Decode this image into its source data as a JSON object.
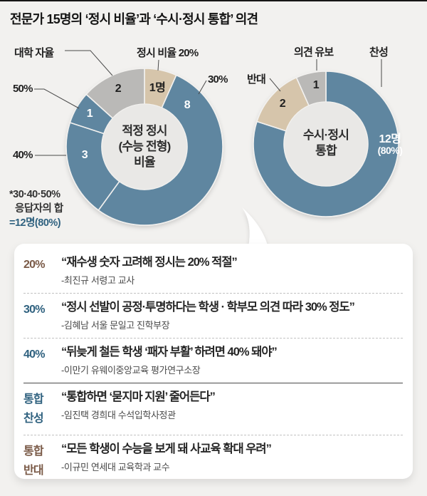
{
  "page": {
    "title": "전문가 15명의 ‘정시 비율’과 ‘수시·정시 통합’ 의견"
  },
  "colors": {
    "accent_blue": "#5e86a0",
    "accent_beige": "#d6c5ab",
    "accent_gray": "#bab9b7",
    "donut_hole": "#e9e8e6",
    "background": "#f2f1ef",
    "text_blue": "#2f617f",
    "text_brown": "#7a5a47"
  },
  "chart_data": [
    {
      "type": "pie",
      "subtype": "donut",
      "title": "적정 정시 (수능 전형) 비율",
      "center_label_lines": [
        "적정 정시",
        "(수능 전형)",
        "비율"
      ],
      "unit": "명",
      "total": 15,
      "segments": [
        {
          "label": "정시 비율 20%",
          "value": 1,
          "value_label": "1명",
          "color": "#d6c5ab"
        },
        {
          "label": "30%",
          "value": 8,
          "value_label": "8",
          "color": "#5e86a0"
        },
        {
          "label": "40%",
          "value": 3,
          "value_label": "3",
          "color": "#5e86a0"
        },
        {
          "label": "50%",
          "value": 1,
          "value_label": "1",
          "color": "#5e86a0"
        },
        {
          "label": "대학 자율",
          "value": 2,
          "value_label": "2",
          "color": "#bab9b7"
        }
      ],
      "note_lines": [
        "*30·40·50%",
        "응답자의 합",
        "=12명(80%)"
      ]
    },
    {
      "type": "pie",
      "subtype": "donut",
      "title": "수시·정시 통합",
      "center_label_lines": [
        "수시·정시",
        "통합"
      ],
      "unit": "명",
      "total": 15,
      "segments": [
        {
          "label": "찬성",
          "value": 12,
          "value_label": "12명",
          "value_sublabel": "(80%)",
          "color": "#5e86a0"
        },
        {
          "label": "반대",
          "value": 2,
          "value_label": "2",
          "color": "#d6c5ab"
        },
        {
          "label": "의견 유보",
          "value": 1,
          "value_label": "1",
          "color": "#bab9b7"
        }
      ]
    }
  ],
  "quotes": {
    "rows": [
      {
        "label_lines": [
          "20%"
        ],
        "label_color": "brown",
        "quote": "“재수생 숫자 고려해 정시는 20% 적절”",
        "attribution": "-최진규 서령고 교사"
      },
      {
        "label_lines": [
          "30%"
        ],
        "label_color": "blue",
        "quote": "“정시 선발이 공정·투명하다는 학생 · 학부모 의견 따라 30% 정도”",
        "attribution": "-김혜남 서울 문일고 진학부장"
      },
      {
        "label_lines": [
          "40%"
        ],
        "label_color": "blue",
        "quote": "“뒤늦게 철든 학생 ‘패자 부활’ 하려면 40% 돼야”",
        "attribution": "-이만기 유웨이중앙교육 평가연구소장"
      },
      {
        "label_lines": [
          "통합",
          "찬성"
        ],
        "label_color": "blue",
        "quote": "“통합하면 ‘묻지마 지원’ 줄어든다”",
        "attribution": "-임진택 경희대 수석입학사정관"
      },
      {
        "label_lines": [
          "통합",
          "반대"
        ],
        "label_color": "brown",
        "quote": "“모든 학생이 수능을 보게 돼 사교육 확대 우려”",
        "attribution": "-이규민 연세대 교육학과 교수"
      }
    ]
  }
}
